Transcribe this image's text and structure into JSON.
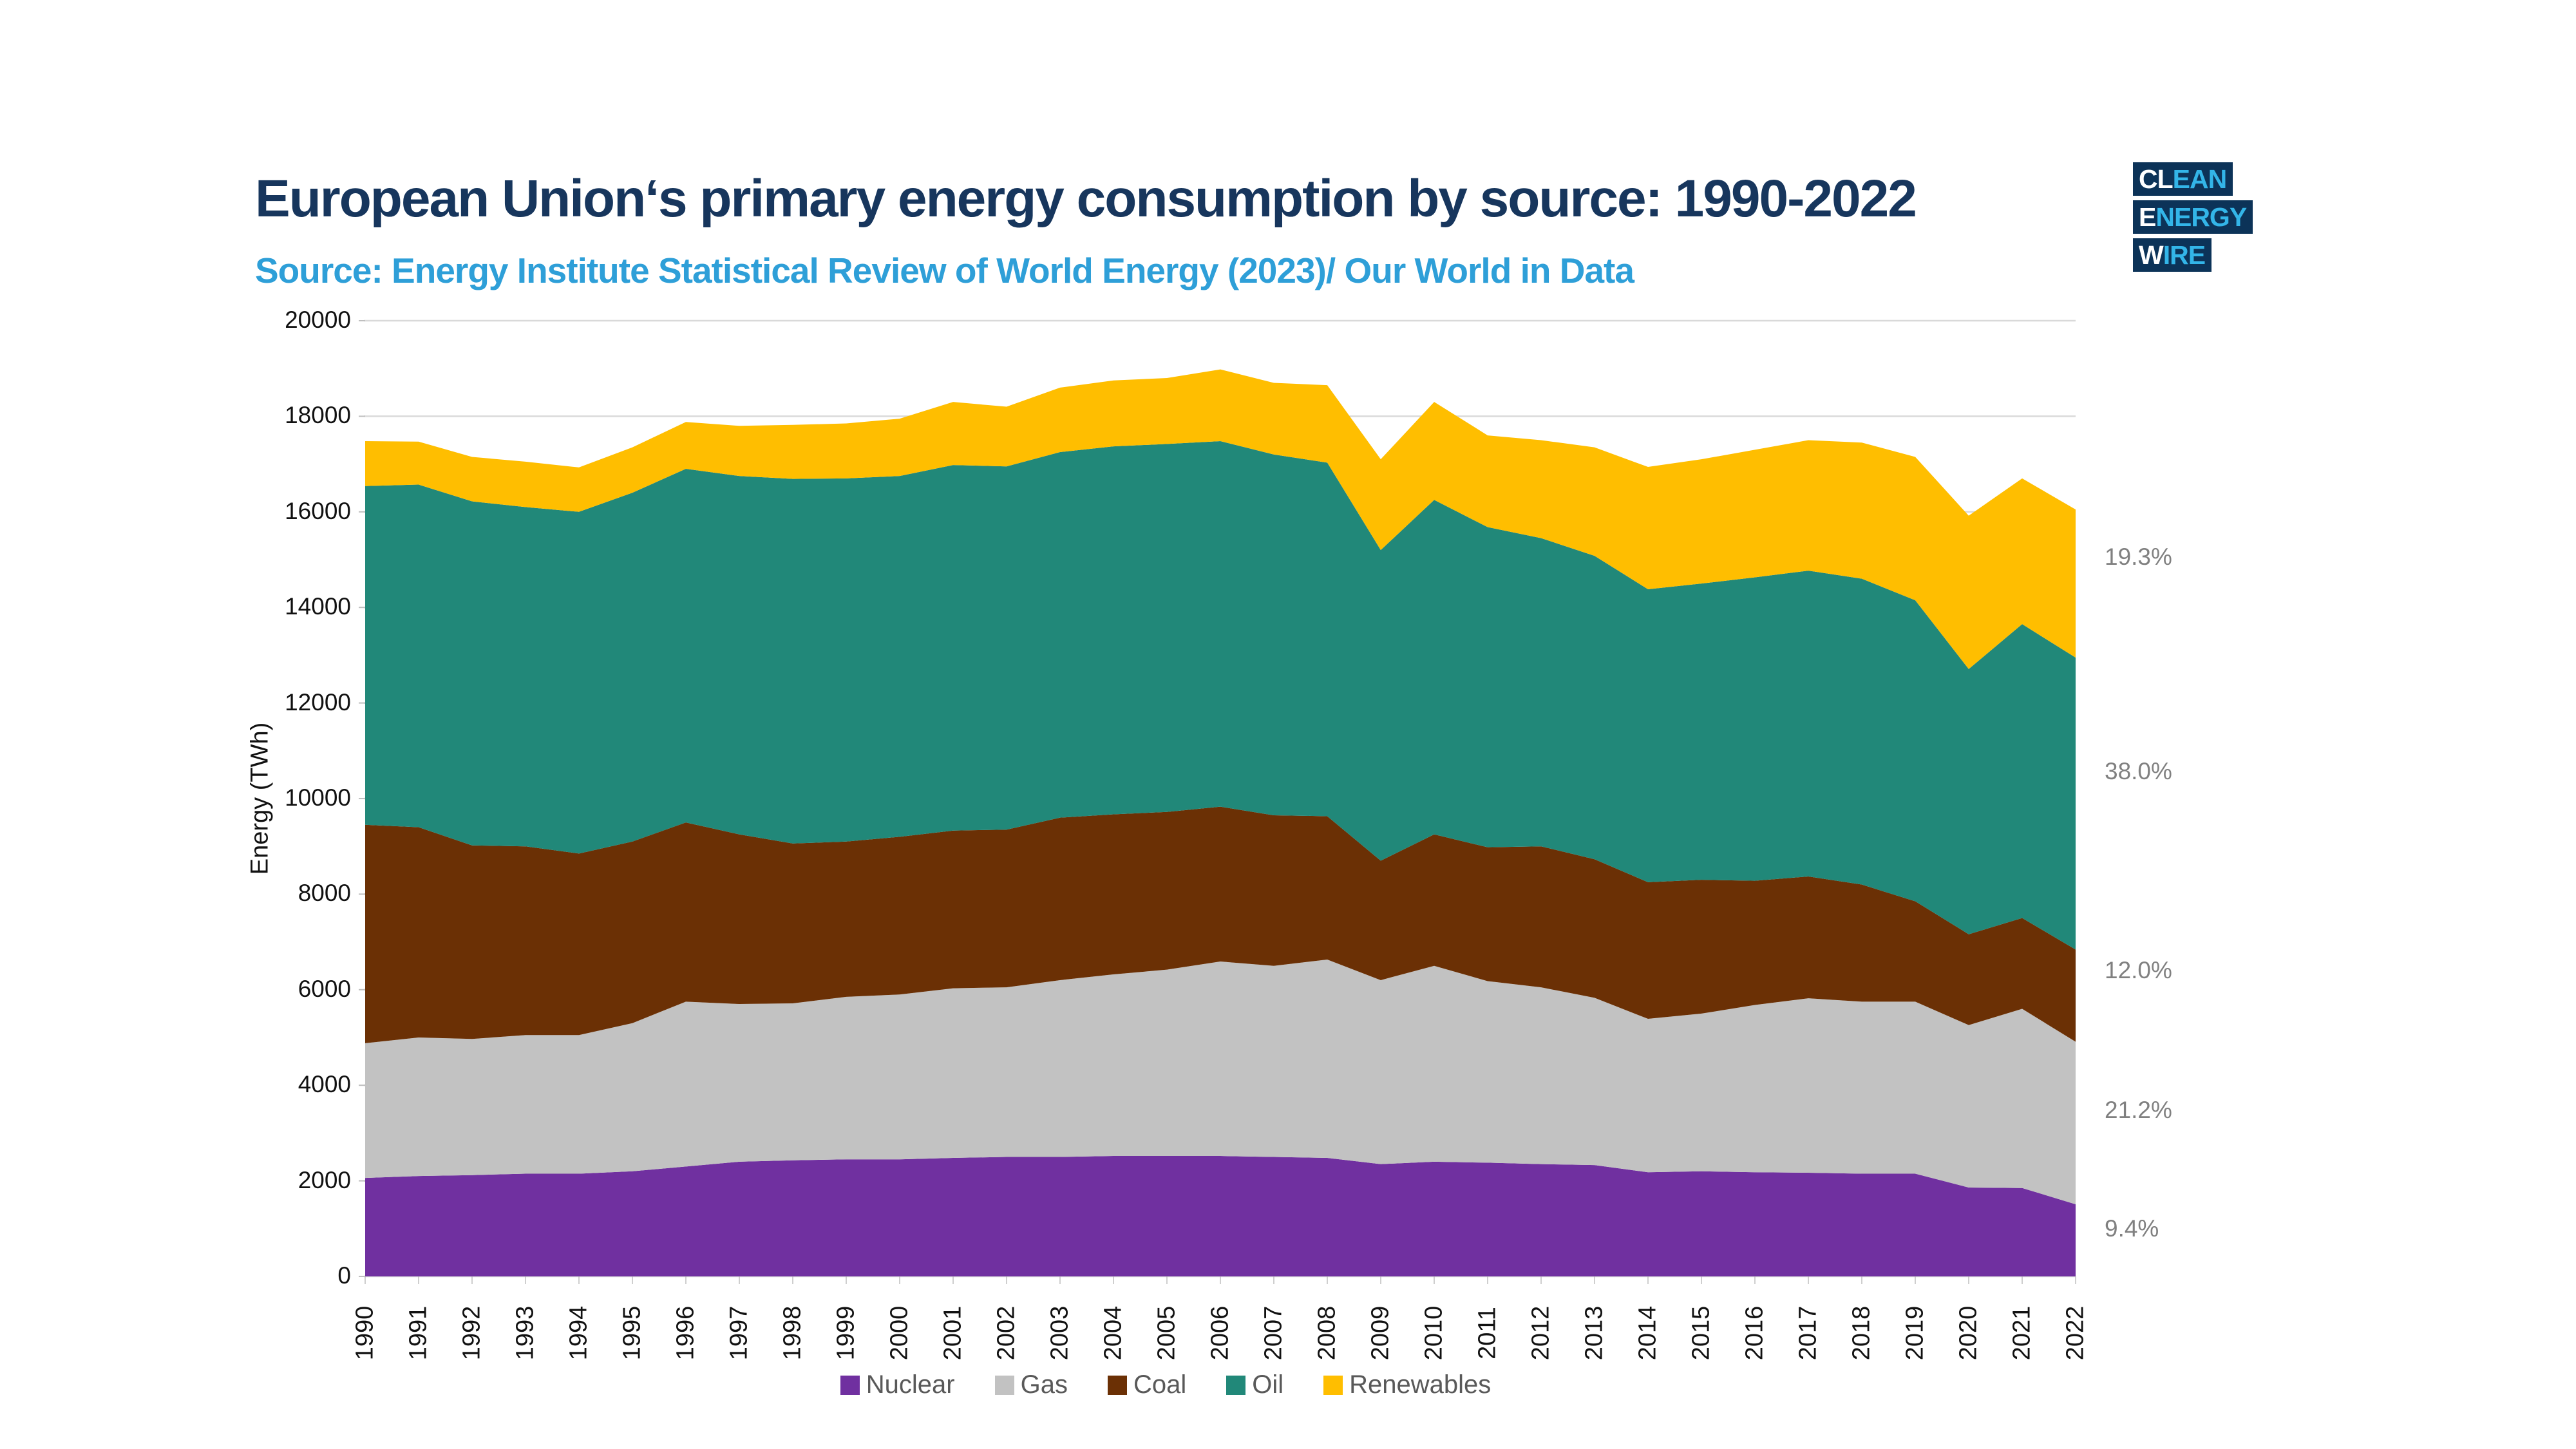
{
  "header": {
    "title": "European Union‘s primary energy consumption by source: 1990-2022",
    "source": "Source: Energy Institute Statistical Review of World Energy (2023)/ Our World in Data"
  },
  "logo": {
    "lines": [
      {
        "white": "CL",
        "accent": "EAN"
      },
      {
        "white": "E",
        "accent": "NERGY"
      },
      {
        "white": "W",
        "accent": "IRE"
      }
    ]
  },
  "colors": {
    "title": "#17365D",
    "source": "#2E9FD8",
    "gridline": "#D9D9D9",
    "tick": "#BFBFBF",
    "annotation": "#808080",
    "legend_text": "#595959",
    "logo_bg": "#0C3358",
    "logo_accent": "#33B5E8"
  },
  "chart_data": {
    "type": "area",
    "stacked": true,
    "title": "European Union‘s primary energy consumption by source: 1990-2022",
    "xlabel": "",
    "ylabel": "Energy (TWh)",
    "ylim": [
      0,
      20000
    ],
    "ytick_step": 2000,
    "grid": "horizontal",
    "legend_position": "bottom-center",
    "categories": [
      "1990",
      "1991",
      "1992",
      "1993",
      "1994",
      "1995",
      "1996",
      "1997",
      "1998",
      "1999",
      "2000",
      "2001",
      "2002",
      "2003",
      "2004",
      "2005",
      "2006",
      "2007",
      "2008",
      "2009",
      "2010",
      "2011",
      "2012",
      "2013",
      "2014",
      "2015",
      "2016",
      "2017",
      "2018",
      "2019",
      "2020",
      "2021",
      "2022"
    ],
    "series": [
      {
        "name": "Nuclear",
        "color": "#7030A0",
        "values": [
          2060,
          2100,
          2120,
          2150,
          2150,
          2200,
          2300,
          2400,
          2430,
          2450,
          2450,
          2480,
          2500,
          2500,
          2520,
          2520,
          2520,
          2500,
          2480,
          2350,
          2400,
          2380,
          2350,
          2330,
          2180,
          2200,
          2180,
          2170,
          2150,
          2150,
          1860,
          1850,
          1510
        ]
      },
      {
        "name": "Gas",
        "color": "#C2C2C2",
        "values": [
          2820,
          2900,
          2850,
          2900,
          2900,
          3100,
          3450,
          3300,
          3285,
          3400,
          3450,
          3550,
          3550,
          3700,
          3800,
          3900,
          4070,
          4000,
          4150,
          3850,
          4100,
          3800,
          3700,
          3500,
          3210,
          3300,
          3500,
          3650,
          3600,
          3600,
          3400,
          3750,
          3400
        ]
      },
      {
        "name": "Coal",
        "color": "#6B3005",
        "values": [
          4570,
          4400,
          4050,
          3950,
          3800,
          3800,
          3750,
          3550,
          3345,
          3250,
          3300,
          3300,
          3300,
          3400,
          3350,
          3300,
          3240,
          3150,
          3000,
          2500,
          2750,
          2800,
          2950,
          2900,
          2860,
          2800,
          2600,
          2550,
          2450,
          2100,
          1900,
          1900,
          1930
        ]
      },
      {
        "name": "Oil",
        "color": "#218879",
        "values": [
          7090,
          7170,
          7200,
          7100,
          7150,
          7300,
          7400,
          7500,
          7630,
          7600,
          7550,
          7650,
          7600,
          7650,
          7700,
          7700,
          7650,
          7550,
          7400,
          6500,
          7000,
          6700,
          6450,
          6350,
          6130,
          6200,
          6350,
          6400,
          6400,
          6300,
          5550,
          6150,
          6110
        ]
      },
      {
        "name": "Renewables",
        "color": "#FFBE00",
        "values": [
          940,
          900,
          930,
          950,
          930,
          950,
          980,
          1050,
          1130,
          1150,
          1200,
          1320,
          1250,
          1350,
          1380,
          1380,
          1500,
          1500,
          1620,
          1900,
          2050,
          1920,
          2050,
          2270,
          2560,
          2600,
          2670,
          2730,
          2850,
          3000,
          3210,
          3050,
          3100
        ]
      }
    ],
    "annotations": [
      {
        "text": "19.3%",
        "series": "Renewables",
        "at_value": 15050
      },
      {
        "text": "38.0%",
        "series": "Oil",
        "at_value": 10560
      },
      {
        "text": "12.0%",
        "series": "Coal",
        "at_value": 6400
      },
      {
        "text": "21.2%",
        "series": "Gas",
        "at_value": 3480
      },
      {
        "text": "9.4%",
        "series": "Nuclear",
        "at_value": 1000
      }
    ]
  }
}
